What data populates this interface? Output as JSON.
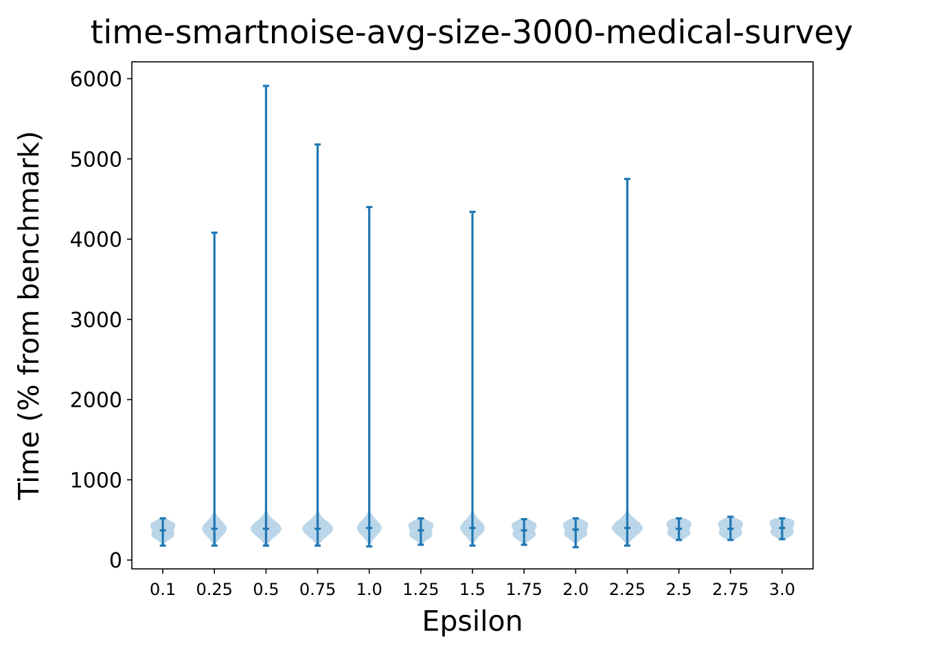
{
  "chart_data": {
    "type": "violin",
    "title": "time-smartnoise-avg-size-3000-medical-survey",
    "xlabel": "Epsilon",
    "ylabel": "Time (% from benchmark)",
    "ylim": [
      -110,
      6210
    ],
    "yticks": [
      0,
      1000,
      2000,
      3000,
      4000,
      5000,
      6000
    ],
    "categories": [
      "0.1",
      "0.25",
      "0.5",
      "0.75",
      "1.0",
      "1.25",
      "1.5",
      "1.75",
      "2.0",
      "2.25",
      "2.5",
      "2.75",
      "3.0"
    ],
    "series": [
      {
        "color": "#1f77b4",
        "fill": "#1f77b4",
        "min": [
          180,
          180,
          180,
          180,
          170,
          190,
          180,
          190,
          160,
          180,
          250,
          250,
          260
        ],
        "median": [
          370,
          390,
          390,
          390,
          400,
          370,
          400,
          370,
          380,
          400,
          390,
          390,
          400
        ],
        "max": [
          520,
          4080,
          5910,
          5180,
          4400,
          520,
          4340,
          510,
          520,
          4750,
          520,
          540,
          520
        ],
        "violin_width": [
          0.24,
          0.24,
          0.3,
          0.3,
          0.24,
          0.24,
          0.24,
          0.24,
          0.24,
          0.3,
          0.24,
          0.24,
          0.24
        ]
      }
    ],
    "grid": false,
    "legend": "none"
  }
}
